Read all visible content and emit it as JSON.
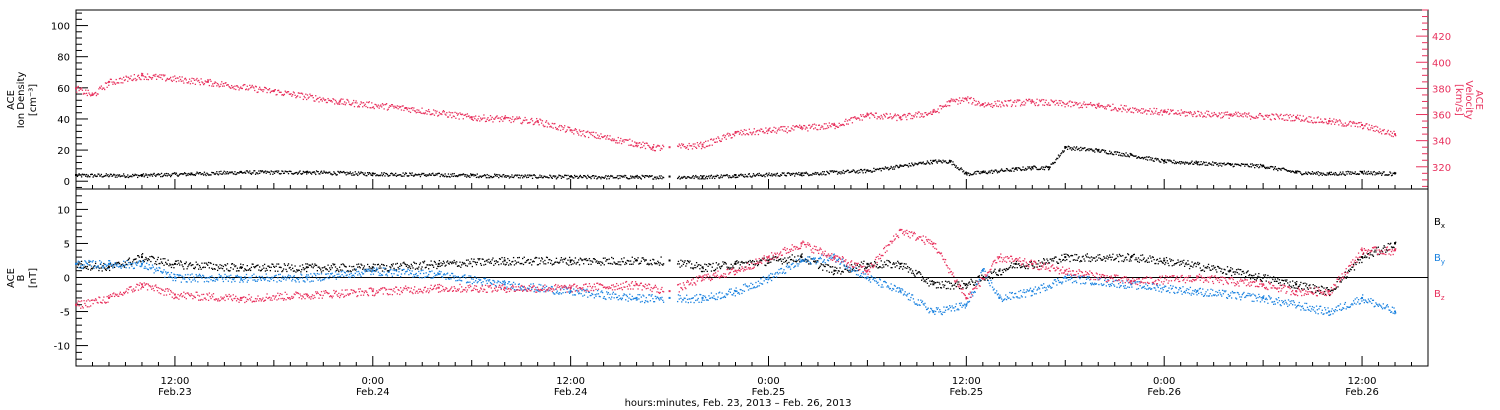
{
  "colors": {
    "black": "#000000",
    "pink": "#e8325e",
    "blue": "#1a82e0"
  },
  "x_axis": {
    "unit": "hours",
    "time_labels": [
      "12:00",
      "0:00",
      "12:00",
      "0:00",
      "12:00",
      "0:00",
      "12:00"
    ],
    "date_labels": [
      "Feb.23",
      "Feb.24",
      "Feb.24",
      "Feb.25",
      "Feb.25",
      "Feb.26",
      "Feb.26"
    ],
    "title": "hours:minutes, Feb. 23, 2013 – Feb. 26, 2013"
  },
  "chart_data": [
    {
      "type": "scatter",
      "panel": "top",
      "x_range_hours": [
        6,
        88
      ],
      "left_axis": {
        "label_lines": [
          "ACE",
          "Ion Density",
          "[cm⁻³]"
        ],
        "ylim": [
          -5,
          110
        ],
        "ticks": [
          0,
          20,
          40,
          60,
          80,
          100
        ]
      },
      "right_axis": {
        "label_lines": [
          "ACE",
          "Velocity",
          "[km/s]"
        ],
        "ylim": [
          303,
          440
        ],
        "ticks": [
          320,
          340,
          360,
          380,
          400,
          420
        ],
        "color": "#e8325e"
      },
      "series": [
        {
          "axis": "left",
          "color": "#000000",
          "points": [
            [
              6,
              4
            ],
            [
              10,
              4
            ],
            [
              13,
              5
            ],
            [
              16,
              6
            ],
            [
              20,
              6
            ],
            [
              24,
              5
            ],
            [
              30,
              4
            ],
            [
              36,
              3
            ],
            [
              40,
              3
            ],
            [
              42,
              3
            ],
            [
              44,
              3
            ],
            [
              46,
              4
            ],
            [
              50,
              5
            ],
            [
              54,
              7
            ],
            [
              56,
              10
            ],
            [
              58,
              13
            ],
            [
              59,
              13
            ],
            [
              60,
              5
            ],
            [
              61,
              6
            ],
            [
              63,
              8
            ],
            [
              64,
              9
            ],
            [
              65,
              9
            ],
            [
              66,
              22
            ],
            [
              68,
              20
            ],
            [
              70,
              17
            ],
            [
              72,
              13
            ],
            [
              74,
              12
            ],
            [
              76,
              11
            ],
            [
              78,
              10
            ],
            [
              80,
              6
            ],
            [
              82,
              5
            ],
            [
              84,
              6
            ],
            [
              86,
              5
            ]
          ]
        },
        {
          "axis": "right",
          "color": "#e8325e",
          "points": [
            [
              6,
              380
            ],
            [
              7,
              375
            ],
            [
              8,
              385
            ],
            [
              10,
              390
            ],
            [
              14,
              385
            ],
            [
              18,
              378
            ],
            [
              22,
              370
            ],
            [
              26,
              365
            ],
            [
              30,
              358
            ],
            [
              32,
              357
            ],
            [
              34,
              355
            ],
            [
              36,
              348
            ],
            [
              40,
              338
            ],
            [
              41,
              335
            ],
            [
              42,
              335
            ],
            [
              44,
              337
            ],
            [
              46,
              346
            ],
            [
              48,
              348
            ],
            [
              50,
              350
            ],
            [
              52,
              352
            ],
            [
              54,
              360
            ],
            [
              56,
              358
            ],
            [
              58,
              362
            ],
            [
              59,
              370
            ],
            [
              60,
              372
            ],
            [
              61,
              368
            ],
            [
              64,
              370
            ],
            [
              68,
              367
            ],
            [
              72,
              362
            ],
            [
              76,
              360
            ],
            [
              80,
              358
            ],
            [
              82,
              355
            ],
            [
              84,
              352
            ],
            [
              86,
              345
            ]
          ]
        }
      ]
    },
    {
      "type": "scatter",
      "panel": "bottom",
      "x_range_hours": [
        6,
        88
      ],
      "left_axis": {
        "label_lines": [
          "ACE",
          "B",
          "[nT]"
        ],
        "ylim": [
          -13,
          13
        ],
        "ticks": [
          -10,
          -5,
          0,
          5,
          10
        ]
      },
      "zero_line": true,
      "series": [
        {
          "name": "B",
          "subscript": "x",
          "color": "#000000",
          "points": [
            [
              6,
              2
            ],
            [
              8,
              1.5
            ],
            [
              10,
              3
            ],
            [
              12,
              2
            ],
            [
              16,
              1.5
            ],
            [
              20,
              1.5
            ],
            [
              24,
              1.5
            ],
            [
              28,
              2
            ],
            [
              32,
              2.5
            ],
            [
              36,
              2.5
            ],
            [
              40,
              2.5
            ],
            [
              42,
              2.5
            ],
            [
              44,
              1.5
            ],
            [
              46,
              2
            ],
            [
              48,
              2.5
            ],
            [
              50,
              3
            ],
            [
              52,
              1
            ],
            [
              54,
              2
            ],
            [
              56,
              2
            ],
            [
              58,
              -1
            ],
            [
              60,
              -1
            ],
            [
              62,
              1
            ],
            [
              63,
              2
            ],
            [
              64,
              2
            ],
            [
              66,
              3
            ],
            [
              70,
              3
            ],
            [
              72,
              2.5
            ],
            [
              76,
              1
            ],
            [
              80,
              -1
            ],
            [
              82,
              -2
            ],
            [
              84,
              3
            ],
            [
              86,
              5
            ]
          ]
        },
        {
          "name": "B",
          "subscript": "y",
          "color": "#1a82e0",
          "points": [
            [
              6,
              2
            ],
            [
              8,
              2
            ],
            [
              10,
              2
            ],
            [
              12,
              0
            ],
            [
              16,
              0
            ],
            [
              20,
              0
            ],
            [
              24,
              1
            ],
            [
              28,
              0.5
            ],
            [
              32,
              -1
            ],
            [
              36,
              -2
            ],
            [
              40,
              -3
            ],
            [
              42,
              -3
            ],
            [
              44,
              -3
            ],
            [
              46,
              -2
            ],
            [
              48,
              0
            ],
            [
              50,
              2.5
            ],
            [
              52,
              3
            ],
            [
              54,
              0
            ],
            [
              56,
              -2
            ],
            [
              58,
              -5
            ],
            [
              60,
              -4
            ],
            [
              61,
              1
            ],
            [
              62,
              -3
            ],
            [
              64,
              -2
            ],
            [
              66,
              0
            ],
            [
              70,
              -1
            ],
            [
              74,
              -2
            ],
            [
              78,
              -3
            ],
            [
              82,
              -5
            ],
            [
              84,
              -3
            ],
            [
              86,
              -5
            ]
          ]
        },
        {
          "name": "B",
          "subscript": "z",
          "color": "#e8325e",
          "points": [
            [
              6,
              -4
            ],
            [
              8,
              -3
            ],
            [
              10,
              -1
            ],
            [
              12,
              -2.5
            ],
            [
              16,
              -3
            ],
            [
              20,
              -2.5
            ],
            [
              24,
              -2
            ],
            [
              28,
              -1.5
            ],
            [
              32,
              -1.5
            ],
            [
              36,
              -1.5
            ],
            [
              40,
              -1
            ],
            [
              42,
              -2
            ],
            [
              44,
              0
            ],
            [
              46,
              1
            ],
            [
              48,
              3
            ],
            [
              50,
              5
            ],
            [
              52,
              3
            ],
            [
              54,
              1
            ],
            [
              56,
              7
            ],
            [
              58,
              5
            ],
            [
              60,
              -3
            ],
            [
              62,
              3
            ],
            [
              64,
              2
            ],
            [
              66,
              1
            ],
            [
              70,
              -0.5
            ],
            [
              74,
              0
            ],
            [
              78,
              -1
            ],
            [
              80,
              -2
            ],
            [
              82,
              -2
            ],
            [
              84,
              4
            ],
            [
              86,
              4
            ]
          ]
        }
      ]
    }
  ]
}
